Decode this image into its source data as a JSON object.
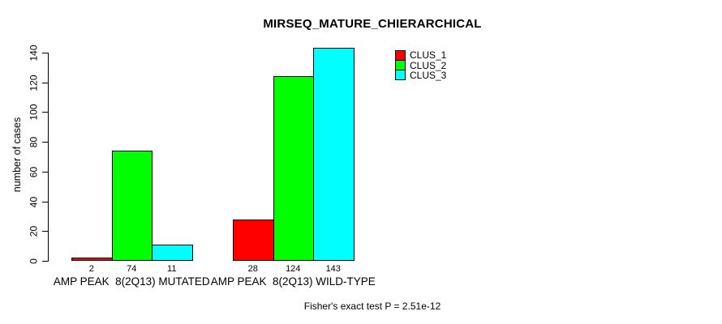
{
  "chart_data": {
    "type": "bar",
    "title": "MIRSEQ_MATURE_CHIERARCHICAL",
    "ylabel": "number of cases",
    "xlabel": "",
    "ylim": [
      0,
      140
    ],
    "yticks": [
      0,
      20,
      40,
      60,
      80,
      100,
      120,
      140
    ],
    "grid": false,
    "legend_position": "top-right",
    "bar_value_labels_shown": true,
    "categories": [
      "AMP PEAK  8(2Q13) MUTATED",
      "AMP PEAK  8(2Q13) WILD-TYPE"
    ],
    "series": [
      {
        "name": "CLUS_1",
        "color": "#ff0000",
        "values": [
          2,
          28
        ]
      },
      {
        "name": "CLUS_2",
        "color": "#00ff00",
        "values": [
          74,
          124
        ]
      },
      {
        "name": "CLUS_3",
        "color": "#00ffff",
        "values": [
          11,
          143
        ]
      }
    ],
    "annotation": "Fisher's exact test P = 2.51e-12"
  }
}
